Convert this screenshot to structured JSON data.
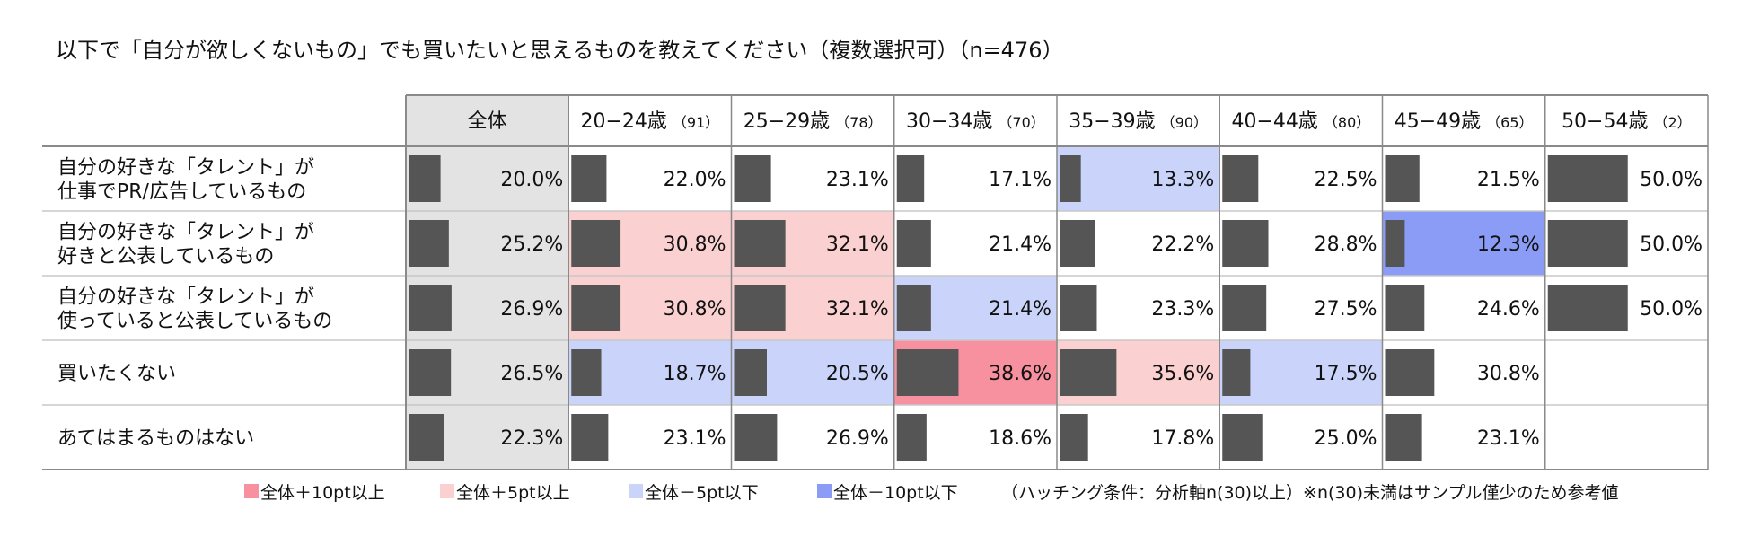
{
  "chart_data": {
    "type": "table",
    "title": "以下で「自分が欲しくないもの」でも買いたいと思えるものを教えてください（複数選択可）（n=476）",
    "columns": [
      {
        "label": "全体",
        "n": ""
      },
      {
        "label": "20−24歳",
        "n": "（91）"
      },
      {
        "label": "25−29歳",
        "n": "（78）"
      },
      {
        "label": "30−34歳",
        "n": "（70）"
      },
      {
        "label": "35−39歳",
        "n": "（90）"
      },
      {
        "label": "40−44歳",
        "n": "（80）"
      },
      {
        "label": "45−49歳",
        "n": "（65）"
      },
      {
        "label": "50−54歳",
        "n": "（2）"
      }
    ],
    "rows": [
      {
        "label_lines": [
          "自分の好きな「タレント」が",
          "仕事でPR/広告しているもの"
        ],
        "values": [
          20.0,
          22.0,
          23.1,
          17.1,
          13.3,
          22.5,
          21.5,
          50.0
        ],
        "labels": [
          "20.0%",
          "22.0%",
          "23.1%",
          "17.1%",
          "13.3%",
          "22.5%",
          "21.5%",
          "50.0%"
        ]
      },
      {
        "label_lines": [
          "自分の好きな「タレント」が",
          "好きと公表しているもの"
        ],
        "values": [
          25.2,
          30.8,
          32.1,
          21.4,
          22.2,
          28.8,
          12.3,
          50.0
        ],
        "labels": [
          "25.2%",
          "30.8%",
          "32.1%",
          "21.4%",
          "22.2%",
          "28.8%",
          "12.3%",
          "50.0%"
        ]
      },
      {
        "label_lines": [
          "自分の好きな「タレント」が",
          "使っていると公表しているもの"
        ],
        "values": [
          26.9,
          30.8,
          32.1,
          21.4,
          23.3,
          27.5,
          24.6,
          50.0
        ],
        "labels": [
          "26.9%",
          "30.8%",
          "32.1%",
          "21.4%",
          "23.3%",
          "27.5%",
          "24.6%",
          "50.0%"
        ]
      },
      {
        "label_lines": [
          "買いたくない"
        ],
        "values": [
          26.5,
          18.7,
          20.5,
          38.6,
          35.6,
          17.5,
          30.8,
          null
        ],
        "labels": [
          "26.5%",
          "18.7%",
          "20.5%",
          "38.6%",
          "35.6%",
          "17.5%",
          "30.8%",
          ""
        ]
      },
      {
        "label_lines": [
          "あてはまるものはない"
        ],
        "values": [
          22.3,
          23.1,
          26.9,
          18.6,
          17.8,
          25.0,
          23.1,
          null
        ],
        "labels": [
          "22.3%",
          "23.1%",
          "26.9%",
          "18.6%",
          "17.8%",
          "25.0%",
          "23.1%",
          ""
        ]
      }
    ],
    "hatching": [
      [
        "none",
        "none",
        "none",
        "none",
        "minus5",
        "none",
        "none",
        "none"
      ],
      [
        "none",
        "plus5",
        "plus5",
        "none",
        "none",
        "none",
        "minus10",
        "none"
      ],
      [
        "none",
        "plus5",
        "plus5",
        "minus5",
        "none",
        "none",
        "none",
        "none"
      ],
      [
        "none",
        "minus5",
        "minus5",
        "plus10",
        "plus5",
        "minus5",
        "none",
        "none"
      ],
      [
        "none",
        "none",
        "none",
        "none",
        "none",
        "none",
        "none",
        "none"
      ]
    ],
    "bar_max": 100,
    "legend": [
      {
        "key": "plus10",
        "label": "全体＋10pt以上",
        "color": "#f7909f"
      },
      {
        "key": "plus5",
        "label": "全体＋5pt以上",
        "color": "#fbd0d0"
      },
      {
        "key": "minus5",
        "label": "全体－5pt以下",
        "color": "#cad3f9"
      },
      {
        "key": "minus10",
        "label": "全体－10pt以下",
        "color": "#8a9cf5"
      }
    ],
    "note": "（ハッチング条件：分析軸n(30)以上）※n(30)未満はサンプル僅少のため参考値"
  },
  "colors": {
    "bar": "#555555",
    "overall_bg": "#e3e3e3",
    "grid": "#c8c8c8",
    "border": "#8a8a8a"
  }
}
